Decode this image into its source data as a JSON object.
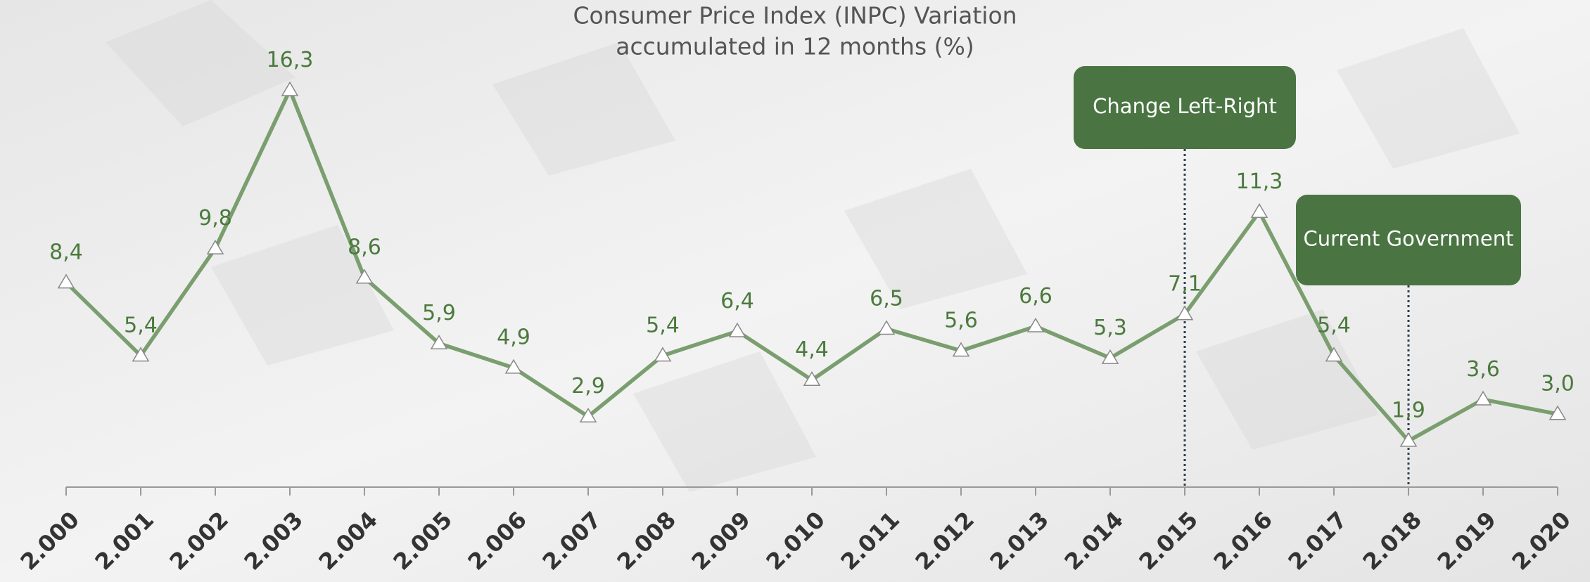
{
  "chart_data": {
    "type": "line",
    "title": "Consumer Price Index (INPC) Variation",
    "subtitle": "accumulated in 12 months (%)",
    "categories": [
      "2.000",
      "2.001",
      "2.002",
      "2.003",
      "2.004",
      "2.005",
      "2.006",
      "2.007",
      "2.008",
      "2.009",
      "2.010",
      "2.011",
      "2.012",
      "2.013",
      "2.014",
      "2.015",
      "2.016",
      "2.017",
      "2.018",
      "2.019",
      "2.020"
    ],
    "series": [
      {
        "name": "INPC",
        "color": "#7a9e6e",
        "values": [
          8.4,
          5.4,
          9.8,
          16.3,
          8.6,
          5.9,
          4.9,
          2.9,
          5.4,
          6.4,
          4.4,
          6.5,
          5.6,
          6.6,
          5.3,
          7.1,
          11.3,
          5.4,
          1.9,
          3.6,
          3.0
        ],
        "value_labels": [
          "8,4",
          "5,4",
          "9,8",
          "16,3",
          "8,6",
          "5,9",
          "4,9",
          "2,9",
          "5,4",
          "6,4",
          "4,4",
          "6,5",
          "5,6",
          "6,6",
          "5,3",
          "7,1",
          "11,3",
          "5,4",
          "1,9",
          "3,6",
          "3,0"
        ]
      }
    ],
    "ylim": [
      0,
      17
    ],
    "annotations": [
      {
        "text": "Change Left-Right",
        "category": "2.015"
      },
      {
        "text": "Current Government",
        "category": "2.018"
      }
    ],
    "annotation_color": "#4a7543"
  }
}
